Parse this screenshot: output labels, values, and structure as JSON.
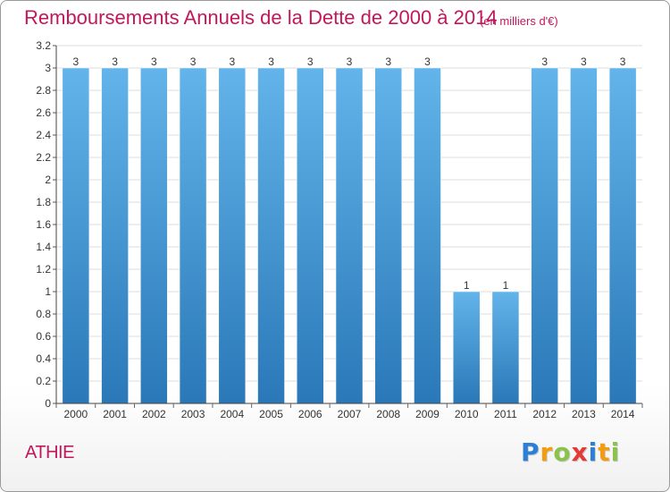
{
  "title": "Remboursements Annuels de la Dette de 2000 à 2014",
  "subtitle": "(en milliers d'€)",
  "commune": "ATHIE",
  "logo": {
    "text": "Proxiti",
    "letters": [
      {
        "ch": "P",
        "color": "#2b7fd4"
      },
      {
        "ch": "r",
        "color": "#f39c12"
      },
      {
        "ch": "o",
        "color": "#8bc34a"
      },
      {
        "ch": "x",
        "color": "#e53935"
      },
      {
        "ch": "i",
        "color": "#2b7fd4"
      },
      {
        "ch": "t",
        "color": "#f39c12"
      },
      {
        "ch": "i",
        "color": "#8bc34a"
      }
    ]
  },
  "colors": {
    "title": "#c2185b",
    "bar_top": "#62b4ea",
    "bar_bottom": "#2a78b8",
    "grid": "#dddddd",
    "axis_text": "#333333"
  },
  "chart_data": {
    "type": "bar",
    "categories": [
      "2000",
      "2001",
      "2002",
      "2003",
      "2004",
      "2005",
      "2006",
      "2007",
      "2008",
      "2009",
      "2010",
      "2011",
      "2012",
      "2013",
      "2014"
    ],
    "values": [
      3,
      3,
      3,
      3,
      3,
      3,
      3,
      3,
      3,
      3,
      1,
      1,
      3,
      3,
      3
    ],
    "data_labels": [
      "3",
      "3",
      "3",
      "3",
      "3",
      "3",
      "3",
      "3",
      "3",
      "3",
      "1",
      "1",
      "3",
      "3",
      "3"
    ],
    "ylim": [
      0,
      3.2
    ],
    "y_ticks": [
      {
        "value": 0,
        "label": "0"
      },
      {
        "value": 0.2,
        "label": "0.2"
      },
      {
        "value": 0.4,
        "label": "0.4"
      },
      {
        "value": 0.6,
        "label": "0.6"
      },
      {
        "value": 0.8,
        "label": "0.8"
      },
      {
        "value": 1.0,
        "label": "1"
      },
      {
        "value": 1.2,
        "label": "1.2"
      },
      {
        "value": 1.4,
        "label": "1.4"
      },
      {
        "value": 1.6,
        "label": "1.6"
      },
      {
        "value": 1.8,
        "label": "1.8"
      },
      {
        "value": 2.0,
        "label": "2"
      },
      {
        "value": 2.2,
        "label": "2.2"
      },
      {
        "value": 2.4,
        "label": "2.4"
      },
      {
        "value": 2.6,
        "label": "2.6"
      },
      {
        "value": 2.8,
        "label": "2.8"
      },
      {
        "value": 3.0,
        "label": "3"
      },
      {
        "value": 3.2,
        "label": "3.2"
      }
    ],
    "xlabel": "",
    "ylabel": "",
    "grid": true,
    "legend": "none"
  }
}
